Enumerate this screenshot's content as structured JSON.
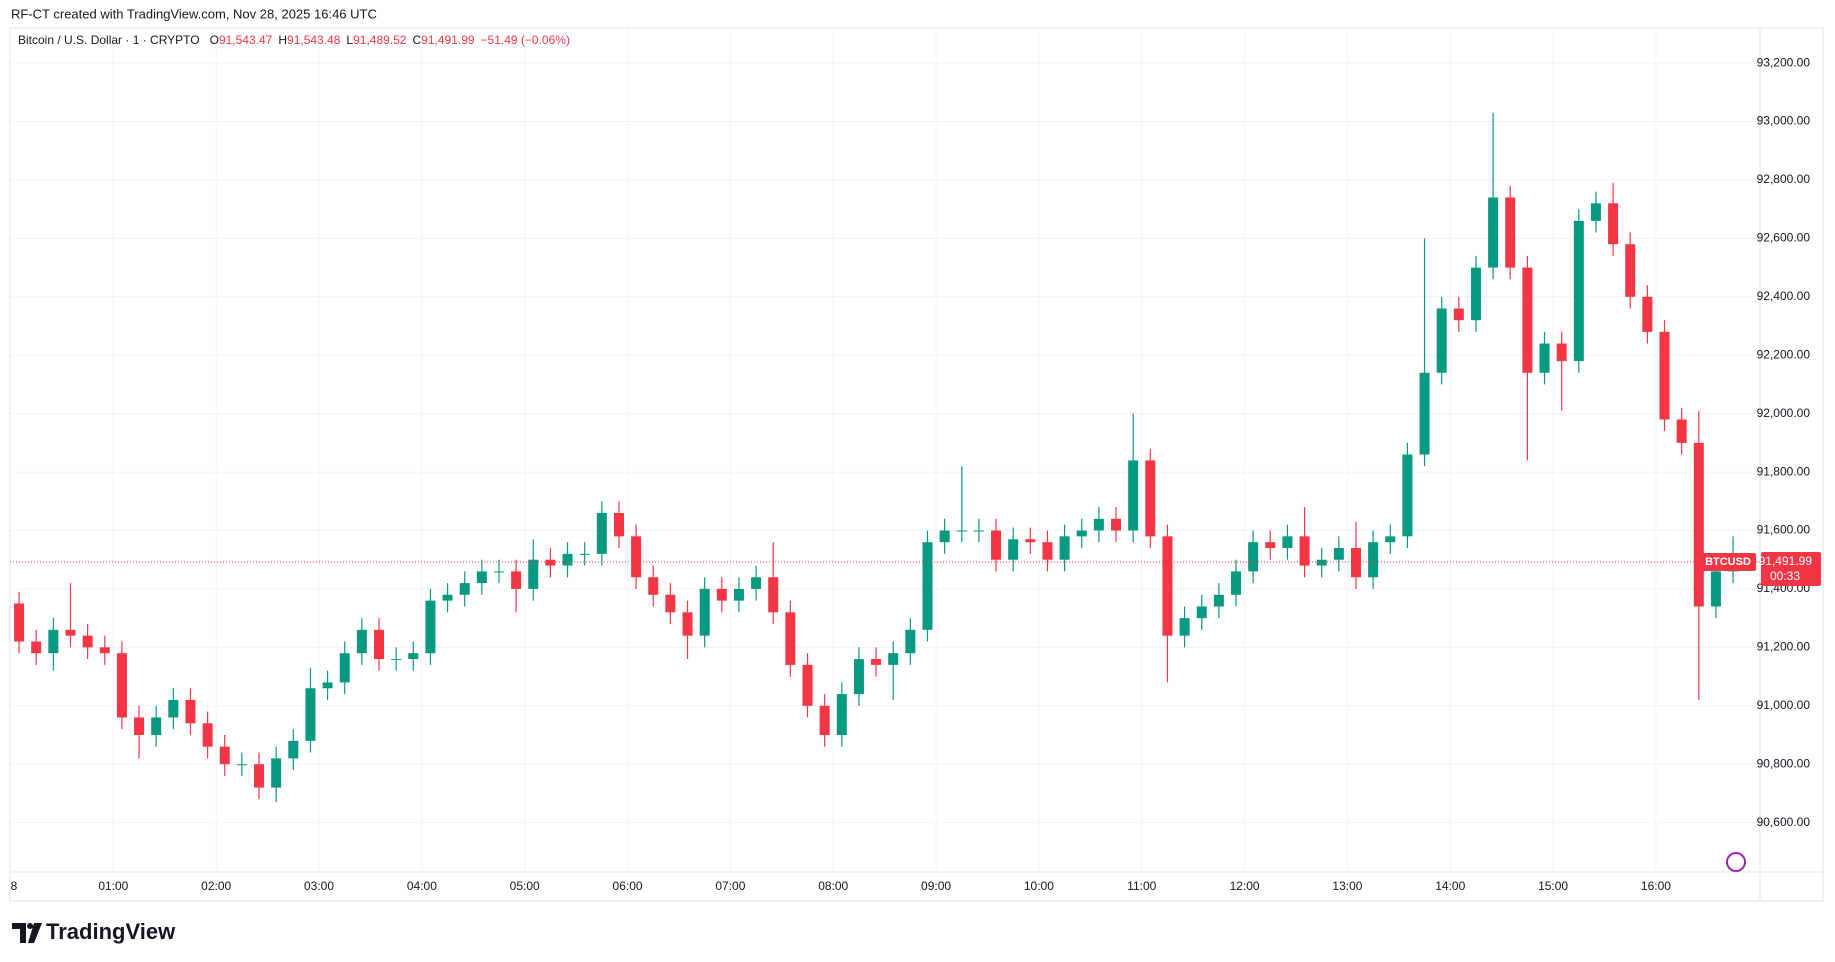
{
  "header": "RF-CT created with TradingView.com, Nov 28, 2025 16:46 UTC",
  "footer": {
    "brand": "TradingView"
  },
  "chart_data": {
    "type": "candlestick",
    "symbol_title": "Bitcoin / U.S. Dollar · 1 · CRYPTO",
    "ohlc_legend": [
      {
        "key": "O",
        "value": "91,543.47"
      },
      {
        "key": "H",
        "value": "91,543.48"
      },
      {
        "key": "L",
        "value": "91,489.52"
      },
      {
        "key": "C",
        "value": "91,491.99"
      }
    ],
    "change": "−51.49 (−0.06%)",
    "up_color": "#089981",
    "down_color": "#f23645",
    "last_price": {
      "symbol": "BTCUSD",
      "value": 91491.99,
      "label": "91,491.99",
      "countdown": "00:33"
    },
    "ylim": [
      90431,
      93238
    ],
    "yticks": [
      {
        "value": 90600,
        "label": "90,600.00"
      },
      {
        "value": 90800,
        "label": "90,800.00"
      },
      {
        "value": 91000,
        "label": "91,000.00"
      },
      {
        "value": 91200,
        "label": "91,200.00"
      },
      {
        "value": 91400,
        "label": "91,400.00"
      },
      {
        "value": 91600,
        "label": "91,600.00"
      },
      {
        "value": 91800,
        "label": "91,800.00"
      },
      {
        "value": 92000,
        "label": "92,000.00"
      },
      {
        "value": 92200,
        "label": "92,200.00"
      },
      {
        "value": 92400,
        "label": "92,400.00"
      },
      {
        "value": 92600,
        "label": "92,600.00"
      },
      {
        "value": 92800,
        "label": "92,800.00"
      },
      {
        "value": 93000,
        "label": "93,000.00"
      },
      {
        "value": 93200,
        "label": "93,200.00"
      }
    ],
    "xticks": [
      {
        "value": "00:00",
        "label": "8"
      },
      "01:00",
      "02:00",
      "03:00",
      "04:00",
      "05:00",
      "06:00",
      "07:00",
      "08:00",
      "09:00",
      "10:00",
      "11:00",
      "12:00",
      "13:00",
      "14:00",
      "15:00",
      "16:00"
    ],
    "grid": true,
    "candles": [
      {
        "time": "00:00",
        "open": 91350,
        "high": 91390,
        "low": 91180,
        "close": 91220
      },
      {
        "time": "00:10",
        "open": 91220,
        "high": 91260,
        "low": 91140,
        "close": 91180
      },
      {
        "time": "00:20",
        "open": 91180,
        "high": 91300,
        "low": 91120,
        "close": 91260
      },
      {
        "time": "00:30",
        "open": 91260,
        "high": 91420,
        "low": 91200,
        "close": 91240
      },
      {
        "time": "00:40",
        "open": 91240,
        "high": 91280,
        "low": 91160,
        "close": 91200
      },
      {
        "time": "00:50",
        "open": 91200,
        "high": 91240,
        "low": 91140,
        "close": 91180
      },
      {
        "time": "01:00",
        "open": 91180,
        "high": 91220,
        "low": 90920,
        "close": 90960
      },
      {
        "time": "01:10",
        "open": 90960,
        "high": 91000,
        "low": 90820,
        "close": 90900
      },
      {
        "time": "01:20",
        "open": 90900,
        "high": 91000,
        "low": 90860,
        "close": 90960
      },
      {
        "time": "01:30",
        "open": 90960,
        "high": 91060,
        "low": 90920,
        "close": 91020
      },
      {
        "time": "01:40",
        "open": 91020,
        "high": 91060,
        "low": 90900,
        "close": 90940
      },
      {
        "time": "01:50",
        "open": 90940,
        "high": 90980,
        "low": 90820,
        "close": 90860
      },
      {
        "time": "02:00",
        "open": 90860,
        "high": 90900,
        "low": 90760,
        "close": 90800
      },
      {
        "time": "02:10",
        "open": 90800,
        "high": 90840,
        "low": 90760,
        "close": 90800
      },
      {
        "time": "02:20",
        "open": 90800,
        "high": 90840,
        "low": 90680,
        "close": 90720
      },
      {
        "time": "02:30",
        "open": 90720,
        "high": 90860,
        "low": 90670,
        "close": 90820
      },
      {
        "time": "02:40",
        "open": 90820,
        "high": 90920,
        "low": 90780,
        "close": 90880
      },
      {
        "time": "02:50",
        "open": 90880,
        "high": 91130,
        "low": 90840,
        "close": 91060
      },
      {
        "time": "03:00",
        "open": 91060,
        "high": 91120,
        "low": 91020,
        "close": 91080
      },
      {
        "time": "03:10",
        "open": 91080,
        "high": 91220,
        "low": 91040,
        "close": 91180
      },
      {
        "time": "03:20",
        "open": 91180,
        "high": 91300,
        "low": 91140,
        "close": 91260
      },
      {
        "time": "03:30",
        "open": 91260,
        "high": 91300,
        "low": 91120,
        "close": 91160
      },
      {
        "time": "03:40",
        "open": 91160,
        "high": 91200,
        "low": 91120,
        "close": 91160
      },
      {
        "time": "03:50",
        "open": 91160,
        "high": 91220,
        "low": 91120,
        "close": 91180
      },
      {
        "time": "04:00",
        "open": 91180,
        "high": 91400,
        "low": 91140,
        "close": 91360
      },
      {
        "time": "04:10",
        "open": 91360,
        "high": 91420,
        "low": 91320,
        "close": 91380
      },
      {
        "time": "04:20",
        "open": 91380,
        "high": 91460,
        "low": 91340,
        "close": 91420
      },
      {
        "time": "04:30",
        "open": 91420,
        "high": 91500,
        "low": 91380,
        "close": 91460
      },
      {
        "time": "04:40",
        "open": 91460,
        "high": 91500,
        "low": 91420,
        "close": 91460
      },
      {
        "time": "04:50",
        "open": 91460,
        "high": 91500,
        "low": 91320,
        "close": 91400
      },
      {
        "time": "05:00",
        "open": 91400,
        "high": 91570,
        "low": 91360,
        "close": 91500
      },
      {
        "time": "05:10",
        "open": 91500,
        "high": 91540,
        "low": 91440,
        "close": 91480
      },
      {
        "time": "05:20",
        "open": 91480,
        "high": 91560,
        "low": 91440,
        "close": 91520
      },
      {
        "time": "05:30",
        "open": 91520,
        "high": 91560,
        "low": 91480,
        "close": 91520
      },
      {
        "time": "05:40",
        "open": 91520,
        "high": 91700,
        "low": 91480,
        "close": 91660
      },
      {
        "time": "05:50",
        "open": 91660,
        "high": 91700,
        "low": 91540,
        "close": 91580
      },
      {
        "time": "06:00",
        "open": 91580,
        "high": 91620,
        "low": 91400,
        "close": 91440
      },
      {
        "time": "06:10",
        "open": 91440,
        "high": 91480,
        "low": 91340,
        "close": 91380
      },
      {
        "time": "06:20",
        "open": 91380,
        "high": 91420,
        "low": 91280,
        "close": 91320
      },
      {
        "time": "06:30",
        "open": 91320,
        "high": 91360,
        "low": 91160,
        "close": 91240
      },
      {
        "time": "06:40",
        "open": 91240,
        "high": 91440,
        "low": 91200,
        "close": 91400
      },
      {
        "time": "06:50",
        "open": 91400,
        "high": 91440,
        "low": 91320,
        "close": 91360
      },
      {
        "time": "07:00",
        "open": 91360,
        "high": 91440,
        "low": 91320,
        "close": 91400
      },
      {
        "time": "07:10",
        "open": 91400,
        "high": 91480,
        "low": 91360,
        "close": 91440
      },
      {
        "time": "07:20",
        "open": 91440,
        "high": 91560,
        "low": 91280,
        "close": 91320
      },
      {
        "time": "07:30",
        "open": 91320,
        "high": 91360,
        "low": 91100,
        "close": 91140
      },
      {
        "time": "07:40",
        "open": 91140,
        "high": 91180,
        "low": 90960,
        "close": 91000
      },
      {
        "time": "07:50",
        "open": 91000,
        "high": 91040,
        "low": 90860,
        "close": 90900
      },
      {
        "time": "08:00",
        "open": 90900,
        "high": 91080,
        "low": 90860,
        "close": 91040
      },
      {
        "time": "08:10",
        "open": 91040,
        "high": 91200,
        "low": 91000,
        "close": 91160
      },
      {
        "time": "08:20",
        "open": 91160,
        "high": 91200,
        "low": 91100,
        "close": 91140
      },
      {
        "time": "08:30",
        "open": 91140,
        "high": 91220,
        "low": 91020,
        "close": 91180
      },
      {
        "time": "08:40",
        "open": 91180,
        "high": 91300,
        "low": 91140,
        "close": 91260
      },
      {
        "time": "08:50",
        "open": 91260,
        "high": 91600,
        "low": 91220,
        "close": 91560
      },
      {
        "time": "09:00",
        "open": 91560,
        "high": 91640,
        "low": 91520,
        "close": 91600
      },
      {
        "time": "09:10",
        "open": 91600,
        "high": 91820,
        "low": 91560,
        "close": 91600
      },
      {
        "time": "09:20",
        "open": 91600,
        "high": 91640,
        "low": 91560,
        "close": 91600
      },
      {
        "time": "09:30",
        "open": 91600,
        "high": 91640,
        "low": 91460,
        "close": 91500
      },
      {
        "time": "09:40",
        "open": 91500,
        "high": 91610,
        "low": 91460,
        "close": 91570
      },
      {
        "time": "09:50",
        "open": 91570,
        "high": 91610,
        "low": 91520,
        "close": 91560
      },
      {
        "time": "10:00",
        "open": 91560,
        "high": 91600,
        "low": 91460,
        "close": 91500
      },
      {
        "time": "10:10",
        "open": 91500,
        "high": 91620,
        "low": 91460,
        "close": 91580
      },
      {
        "time": "10:20",
        "open": 91580,
        "high": 91640,
        "low": 91540,
        "close": 91600
      },
      {
        "time": "10:30",
        "open": 91600,
        "high": 91680,
        "low": 91560,
        "close": 91640
      },
      {
        "time": "10:40",
        "open": 91640,
        "high": 91680,
        "low": 91560,
        "close": 91600
      },
      {
        "time": "10:50",
        "open": 91600,
        "high": 92000,
        "low": 91560,
        "close": 91840
      },
      {
        "time": "11:00",
        "open": 91840,
        "high": 91880,
        "low": 91540,
        "close": 91580
      },
      {
        "time": "11:10",
        "open": 91580,
        "high": 91620,
        "low": 91080,
        "close": 91240
      },
      {
        "time": "11:20",
        "open": 91240,
        "high": 91340,
        "low": 91200,
        "close": 91300
      },
      {
        "time": "11:30",
        "open": 91300,
        "high": 91380,
        "low": 91260,
        "close": 91340
      },
      {
        "time": "11:40",
        "open": 91340,
        "high": 91420,
        "low": 91300,
        "close": 91380
      },
      {
        "time": "11:50",
        "open": 91380,
        "high": 91500,
        "low": 91340,
        "close": 91460
      },
      {
        "time": "12:00",
        "open": 91460,
        "high": 91600,
        "low": 91420,
        "close": 91560
      },
      {
        "time": "12:10",
        "open": 91560,
        "high": 91600,
        "low": 91500,
        "close": 91540
      },
      {
        "time": "12:20",
        "open": 91540,
        "high": 91620,
        "low": 91500,
        "close": 91580
      },
      {
        "time": "12:30",
        "open": 91580,
        "high": 91680,
        "low": 91440,
        "close": 91480
      },
      {
        "time": "12:40",
        "open": 91480,
        "high": 91540,
        "low": 91440,
        "close": 91500
      },
      {
        "time": "12:50",
        "open": 91500,
        "high": 91580,
        "low": 91460,
        "close": 91540
      },
      {
        "time": "13:00",
        "open": 91540,
        "high": 91630,
        "low": 91400,
        "close": 91440
      },
      {
        "time": "13:10",
        "open": 91440,
        "high": 91600,
        "low": 91400,
        "close": 91560
      },
      {
        "time": "13:20",
        "open": 91560,
        "high": 91620,
        "low": 91520,
        "close": 91580
      },
      {
        "time": "13:30",
        "open": 91580,
        "high": 91900,
        "low": 91540,
        "close": 91860
      },
      {
        "time": "13:40",
        "open": 91860,
        "high": 92600,
        "low": 91820,
        "close": 92140
      },
      {
        "time": "13:50",
        "open": 92140,
        "high": 92400,
        "low": 92100,
        "close": 92360
      },
      {
        "time": "14:00",
        "open": 92360,
        "high": 92400,
        "low": 92280,
        "close": 92320
      },
      {
        "time": "14:10",
        "open": 92320,
        "high": 92540,
        "low": 92280,
        "close": 92500
      },
      {
        "time": "14:20",
        "open": 92500,
        "high": 93030,
        "low": 92460,
        "close": 92740
      },
      {
        "time": "14:30",
        "open": 92740,
        "high": 92780,
        "low": 92460,
        "close": 92500
      },
      {
        "time": "14:40",
        "open": 92500,
        "high": 92540,
        "low": 91840,
        "close": 92140
      },
      {
        "time": "14:50",
        "open": 92140,
        "high": 92280,
        "low": 92100,
        "close": 92240
      },
      {
        "time": "15:00",
        "open": 92240,
        "high": 92280,
        "low": 92010,
        "close": 92180
      },
      {
        "time": "15:10",
        "open": 92180,
        "high": 92700,
        "low": 92140,
        "close": 92660
      },
      {
        "time": "15:20",
        "open": 92660,
        "high": 92760,
        "low": 92620,
        "close": 92720
      },
      {
        "time": "15:30",
        "open": 92720,
        "high": 92790,
        "low": 92540,
        "close": 92580
      },
      {
        "time": "15:40",
        "open": 92580,
        "high": 92620,
        "low": 92360,
        "close": 92400
      },
      {
        "time": "15:50",
        "open": 92400,
        "high": 92440,
        "low": 92240,
        "close": 92280
      },
      {
        "time": "16:00",
        "open": 92280,
        "high": 92320,
        "low": 91940,
        "close": 91980
      },
      {
        "time": "16:10",
        "open": 91980,
        "high": 92020,
        "low": 91860,
        "close": 91900
      },
      {
        "time": "16:20",
        "open": 91900,
        "high": 92010,
        "low": 91020,
        "close": 91340
      },
      {
        "time": "16:30",
        "open": 91340,
        "high": 91500,
        "low": 91300,
        "close": 91460
      },
      {
        "time": "16:40",
        "open": 91460,
        "high": 91580,
        "low": 91420,
        "close": 91491.99
      }
    ]
  }
}
